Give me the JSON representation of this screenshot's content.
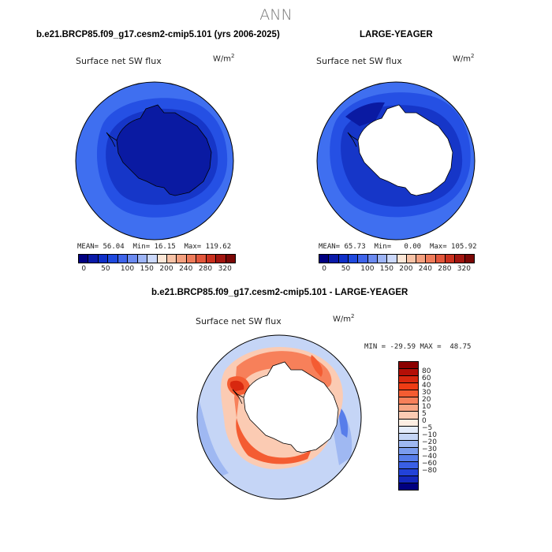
{
  "page": {
    "title": "ANN"
  },
  "panel1": {
    "title": "b.e21.BRCP85.f09_g17.cesm2-cmip5.101 (yrs 2006-2025)",
    "field": "Surface net SW flux",
    "units_base": "W/m",
    "units_exp": "2",
    "mean_label": "MEAN=",
    "mean": "56.04",
    "min_label": "Min=",
    "min": "16.15",
    "max_label": "Max=",
    "max": "119.62"
  },
  "panel2": {
    "title": "LARGE-YEAGER",
    "field": "Surface net SW flux",
    "units_base": "W/m",
    "units_exp": "2",
    "mean_label": "MEAN=",
    "mean": "65.73",
    "min_label": "Min=",
    "min": "0.00",
    "max_label": "Max=",
    "max": "105.92"
  },
  "panel3": {
    "title": "b.e21.BRCP85.f09_g17.cesm2-cmip5.101 - LARGE-YEAGER",
    "field": "Surface net SW flux",
    "units_base": "W/m",
    "units_exp": "2",
    "minmax": "MIN = -29.59 MAX =  48.75"
  },
  "colorbar_abs": {
    "colors": [
      "#000080",
      "#0a1aa8",
      "#0f2fc8",
      "#1f49de",
      "#3f64ea",
      "#6b8af0",
      "#9db4f5",
      "#cbd8fa",
      "#fbe6d6",
      "#f7c2a6",
      "#f4a07f",
      "#ee7b5a",
      "#e2563b",
      "#c9301e",
      "#a2150f",
      "#7a0705"
    ],
    "tick_labels": [
      "0",
      "50",
      "100",
      "150",
      "200",
      "240",
      "280",
      "320"
    ]
  },
  "colorbar_diff": {
    "colors": [
      "#8b0000",
      "#b40f07",
      "#d8280f",
      "#ee3c14",
      "#f45c32",
      "#f7805a",
      "#f8a583",
      "#fbcbb3",
      "#fdeee3",
      "#e4ecfb",
      "#c5d5f6",
      "#9fb8f2",
      "#7b9cee",
      "#577dea",
      "#3a5fe5",
      "#2242d8",
      "#1428bd",
      "#000080"
    ],
    "labels": [
      "80",
      "60",
      "40",
      "30",
      "20",
      "10",
      "5",
      "0",
      "−5",
      "−10",
      "−20",
      "−30",
      "−40",
      "−60",
      "−80"
    ]
  }
}
